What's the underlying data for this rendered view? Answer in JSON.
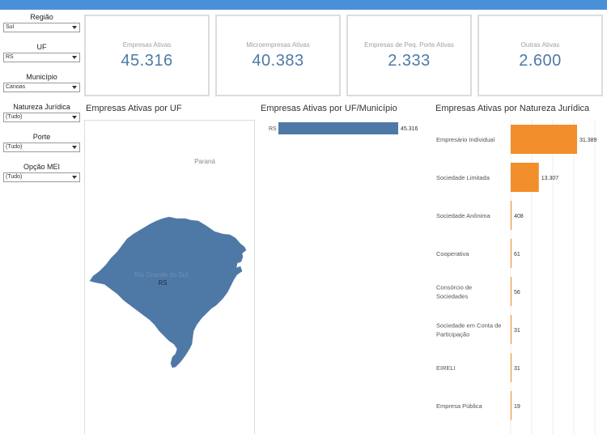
{
  "filters": [
    {
      "label": "Região",
      "value": "Sul"
    },
    {
      "label": "UF",
      "value": "RS"
    },
    {
      "label": "Município",
      "value": "Canoas"
    },
    {
      "label": "Natureza Jurídica",
      "value": "(Tudo)"
    },
    {
      "label": "Porte",
      "value": "(Tudo)"
    },
    {
      "label": "Opção MEI",
      "value": "(Tudo)"
    }
  ],
  "kpis": [
    {
      "label": "Empresas Ativas",
      "value": "45.316"
    },
    {
      "label": "Microempresas Ativas",
      "value": "40.383"
    },
    {
      "label": "Empresas de Peq. Porte Ativas",
      "value": "2.333"
    },
    {
      "label": "Outras Ativas",
      "value": "2.600"
    }
  ],
  "map": {
    "title": "Empresas Ativas por UF",
    "neighbor_label": "Paraná",
    "state_name_label": "Rio Grande do Sul",
    "state_label": "RS",
    "fill_color": "#4e79a7"
  },
  "chart_data": [
    {
      "type": "bar",
      "orientation": "horizontal",
      "title": "Empresas Ativas por UF/Município",
      "categories": [
        "RS"
      ],
      "values": [
        45316
      ],
      "value_labels": [
        "45.316"
      ],
      "color": "#4e79a7"
    },
    {
      "type": "bar",
      "orientation": "horizontal",
      "title": "Empresas Ativas por Natureza Jurídica",
      "categories": [
        "Empresário Individual",
        "Sociedade Limitada",
        "Sociedade Anônima",
        "Cooperativa",
        "Consórcio de Sociedades",
        "Sociedade em Conta de Participação",
        "EIRELI",
        "Empresa Pública"
      ],
      "category_lines": [
        [
          "Empresário Individual"
        ],
        [
          "Sociedade Limitada"
        ],
        [
          "Sociedade Anônima"
        ],
        [
          "Cooperativa"
        ],
        [
          "Consórcio de",
          "Sociedades"
        ],
        [
          "Sociedade em Conta de",
          "Participação"
        ],
        [
          "EIRELI"
        ],
        [
          "Empresa Pública"
        ]
      ],
      "values": [
        31389,
        13307,
        408,
        61,
        56,
        31,
        31,
        19
      ],
      "value_labels": [
        "31.389",
        "13.307",
        "408",
        "61",
        "56",
        "31",
        "31",
        "19"
      ],
      "color": "#f28e2b"
    }
  ]
}
